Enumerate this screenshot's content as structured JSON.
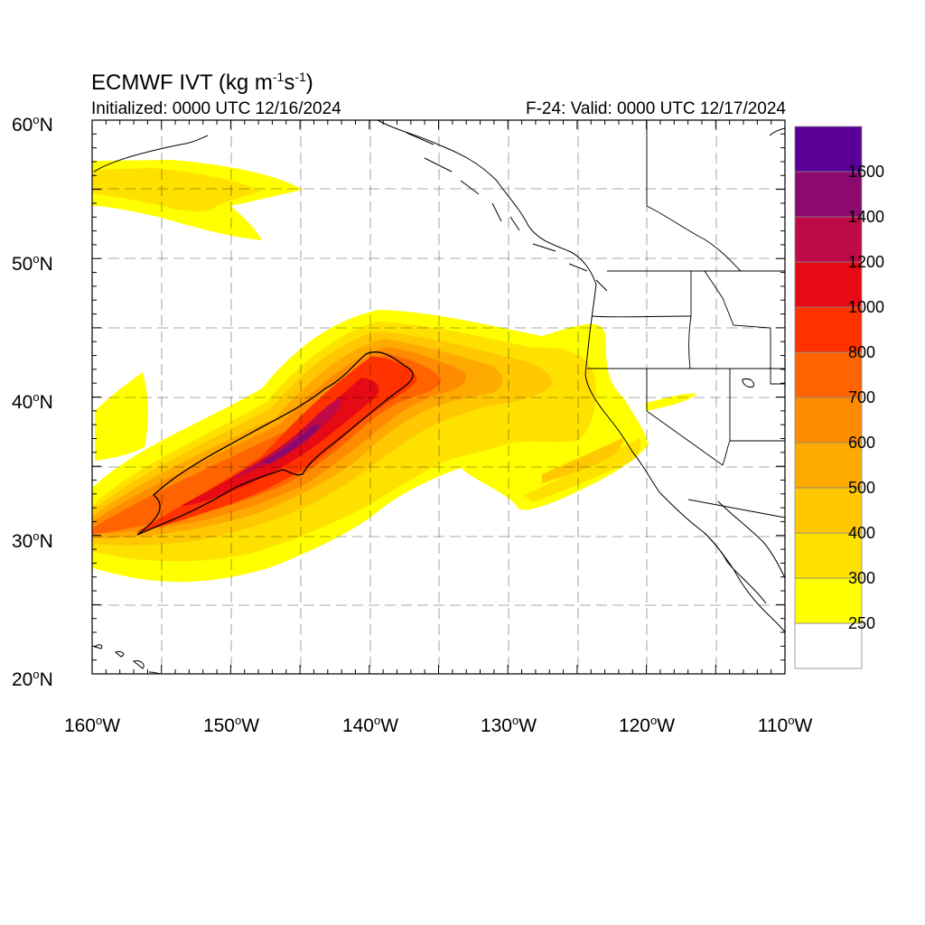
{
  "header": {
    "title_main": "ECMWF IVT (kg m",
    "title_exp1": "-1",
    "title_mid": "s",
    "title_exp2": "-1",
    "title_end": ")",
    "initialized": "Initialized: 0000 UTC 12/16/2024",
    "valid": "F-24: Valid: 0000 UTC 12/17/2024"
  },
  "map": {
    "lat_labels": [
      {
        "value": "60",
        "suffix": "N"
      },
      {
        "value": "50",
        "suffix": "N"
      },
      {
        "value": "40",
        "suffix": "N"
      },
      {
        "value": "30",
        "suffix": "N"
      },
      {
        "value": "20",
        "suffix": "N"
      }
    ],
    "lon_labels": [
      {
        "value": "160",
        "suffix": "W"
      },
      {
        "value": "150",
        "suffix": "W"
      },
      {
        "value": "140",
        "suffix": "W"
      },
      {
        "value": "130",
        "suffix": "W"
      },
      {
        "value": "120",
        "suffix": "W"
      },
      {
        "value": "110",
        "suffix": "W"
      }
    ],
    "extent": {
      "lon_min": -160,
      "lon_max": -110,
      "lat_min": 20,
      "lat_max": 60
    },
    "degree_symbol": "o"
  },
  "colorbar": {
    "levels": [
      "250",
      "300",
      "400",
      "500",
      "600",
      "700",
      "800",
      "1000",
      "1200",
      "1400",
      "1600"
    ],
    "colors": [
      "#ffffff",
      "#ffff00",
      "#ffe100",
      "#ffc800",
      "#ffaa00",
      "#ff8c00",
      "#ff6400",
      "#ff3200",
      "#e60a14",
      "#be0a46",
      "#8c0a6e",
      "#5a0096"
    ]
  }
}
